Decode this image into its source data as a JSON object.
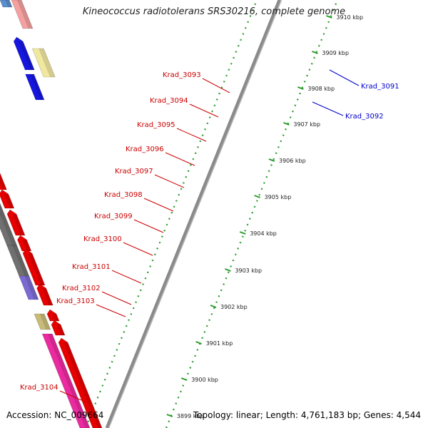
{
  "title": "Kineococcus radiotolerans SRS30216, complete genome",
  "footer": {
    "accession": "Accession: NC_009664",
    "topology": "Topology: linear; Length: 4,761,183 bp; Genes: 4,544"
  },
  "colors": {
    "background": "#ffffff",
    "backbone": "#8a8a8a",
    "ruler_dots": "#2a9a2a",
    "label_left": "#cc0000",
    "label_right": "#0000cc"
  },
  "scale_labels": [
    "3899 kbp",
    "3900 kbp",
    "3901 kbp",
    "3902 kbp",
    "3903 kbp",
    "3904 kbp",
    "3905 kbp",
    "3906 kbp",
    "3907 kbp",
    "3908 kbp",
    "3909 kbp",
    "3910 kbp"
  ],
  "genes": [
    {
      "label": "Krad_3091",
      "color": "#f1e8a0",
      "side": "right"
    },
    {
      "label": "Krad_3092",
      "color": "#1616e0",
      "side": "right"
    },
    {
      "label": "Krad_3093",
      "color": "#f08c0c",
      "side": "left"
    },
    {
      "label": "Krad_3094",
      "color": "#707070",
      "side": "left"
    },
    {
      "label": "Krad_3095",
      "color": "#f08c0c",
      "side": "left"
    },
    {
      "label": "Krad_3096",
      "color": "#26c426",
      "side": "left"
    },
    {
      "label": "Krad_3097",
      "color": "#4f79b5",
      "side": "left"
    },
    {
      "label": "Krad_3098",
      "color": "#707070",
      "side": "left"
    },
    {
      "label": "Krad_3099",
      "color": "#707070",
      "side": "left"
    },
    {
      "label": "Krad_3100",
      "color": "#707070",
      "side": "left"
    },
    {
      "label": "Krad_3101",
      "color": "#7a6ad2",
      "side": "left"
    },
    {
      "label": "Krad_3102",
      "color": "#c8bb78",
      "side": "left"
    },
    {
      "label": "Krad_3103",
      "color": "#c8bb78",
      "side": "left"
    },
    {
      "label": "Krad_3104",
      "color": "#ec2aa0",
      "side": "left"
    }
  ]
}
